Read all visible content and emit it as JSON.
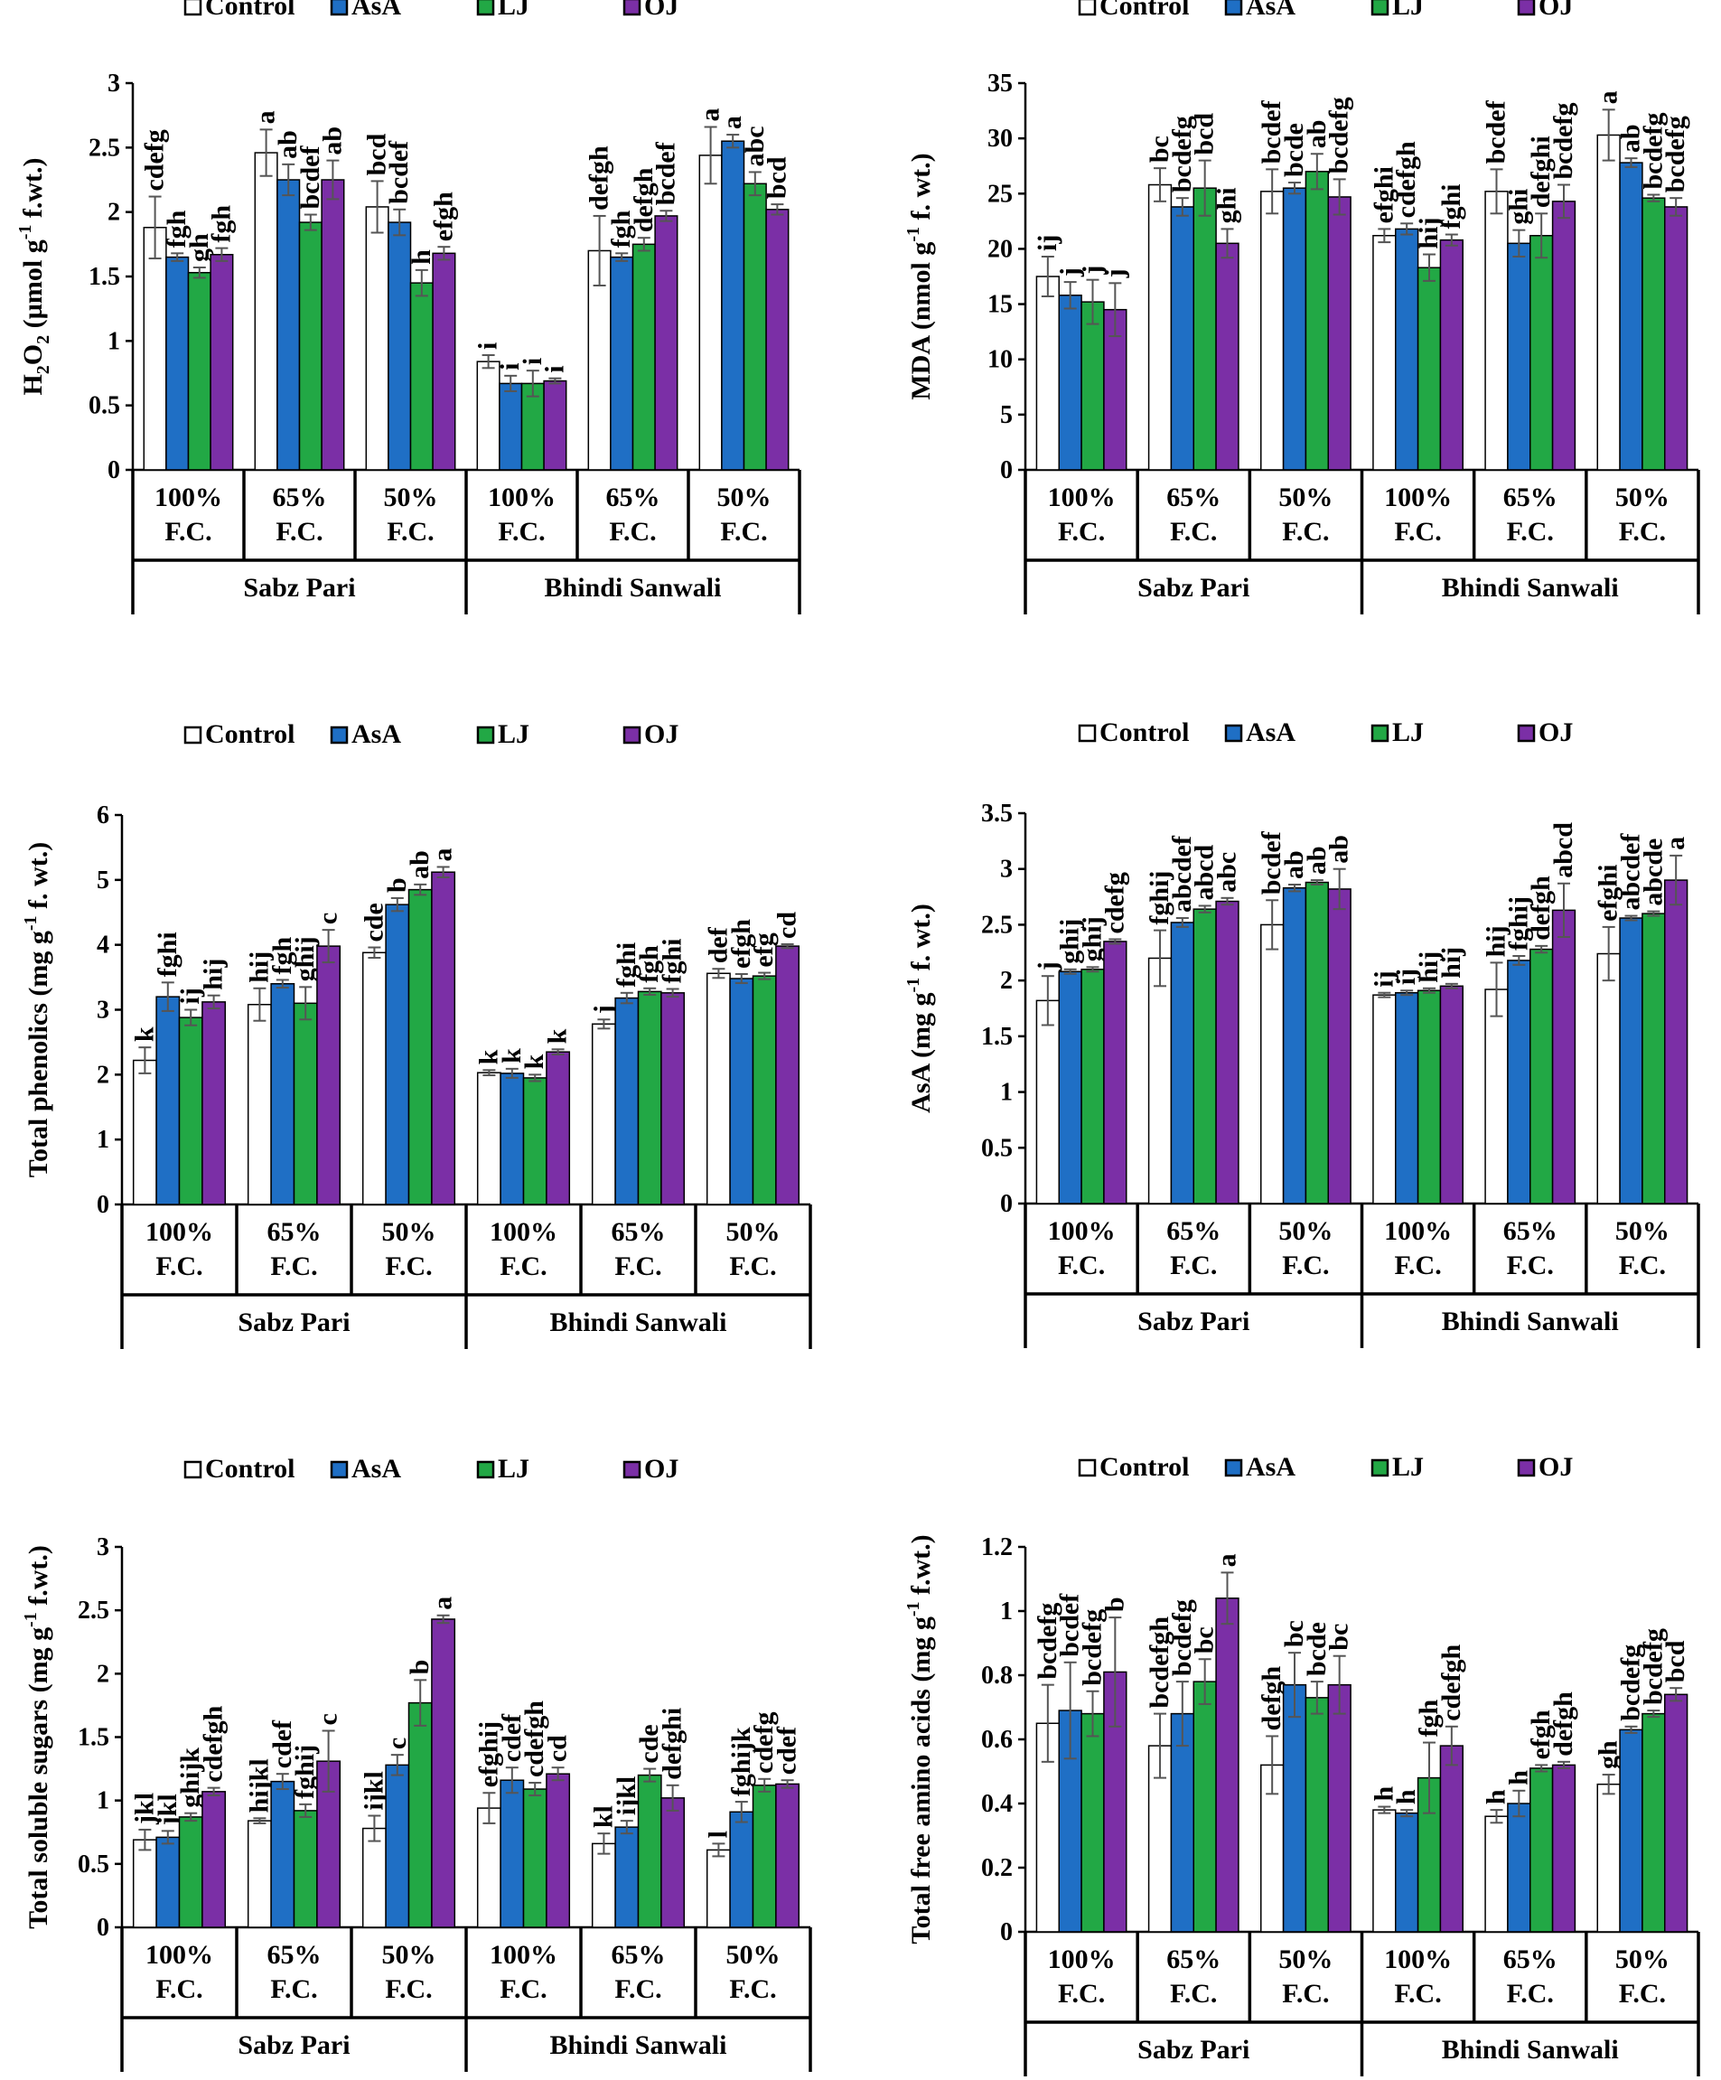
{
  "colors": {
    "Control": "#ffffff",
    "AsA": "#1f6fc5",
    "LJ": "#22a845",
    "OJ": "#7b2fa6",
    "axis": "#000000"
  },
  "chart_data": [
    {
      "type": "bar",
      "id": "h2o2",
      "ylabel_main": "H",
      "ylabel_sub": "2",
      "ylabel_main2": "O",
      "ylabel_sub2": "2",
      "ylabel_rest": " (µmol g",
      "ylabel_sup": "-1",
      "ylabel_end": " f.wt.)",
      "ylim": [
        0,
        3
      ],
      "yticks": [
        "0",
        "0.5",
        "1",
        "1.5",
        "2",
        "2.5",
        "3"
      ],
      "legend": [
        "Control",
        "AsA",
        "LJ",
        "OJ"
      ],
      "groups": [
        "Sabz Pari",
        "Bhindi Sanwali"
      ],
      "categories": [
        {
          "line1": "100%",
          "line2": "F.C."
        },
        {
          "line1": "65%",
          "line2": "F.C."
        },
        {
          "line1": "50%",
          "line2": "F.C."
        },
        {
          "line1": "100%",
          "line2": "F.C."
        },
        {
          "line1": "65%",
          "line2": "F.C."
        },
        {
          "line1": "50%",
          "line2": "F.C."
        }
      ],
      "series": [
        {
          "name": "Control",
          "values": [
            1.88,
            2.46,
            2.04,
            0.84,
            1.7,
            2.44
          ],
          "errors": [
            0.24,
            0.18,
            0.2,
            0.05,
            0.27,
            0.22
          ],
          "letters": [
            "cdefg",
            "a",
            "bcd",
            "i",
            "defgh",
            "a"
          ]
        },
        {
          "name": "AsA",
          "values": [
            1.65,
            2.25,
            1.92,
            0.67,
            1.65,
            2.55
          ],
          "errors": [
            0.03,
            0.12,
            0.1,
            0.06,
            0.03,
            0.05
          ],
          "letters": [
            "fgh",
            "ab",
            "bcdef",
            "i",
            "fgh",
            "a"
          ]
        },
        {
          "name": "LJ",
          "values": [
            1.53,
            1.92,
            1.45,
            0.67,
            1.75,
            2.22
          ],
          "errors": [
            0.04,
            0.06,
            0.1,
            0.1,
            0.05,
            0.09
          ],
          "letters": [
            "gh",
            "bcdef",
            "h",
            "i",
            "defgh",
            "abc"
          ]
        },
        {
          "name": "OJ",
          "values": [
            1.67,
            2.25,
            1.68,
            0.69,
            1.97,
            2.02
          ],
          "errors": [
            0.05,
            0.15,
            0.05,
            0.02,
            0.04,
            0.04
          ],
          "letters": [
            "fgh",
            "ab",
            "efgh",
            "i",
            "bcdef",
            "bcd"
          ]
        }
      ]
    },
    {
      "type": "bar",
      "id": "mda",
      "ylabel_main": "MDA (nmol g",
      "ylabel_sup": "-1",
      "ylabel_end": " f. wt.)",
      "ylim": [
        0,
        35
      ],
      "yticks": [
        "0",
        "5",
        "10",
        "15",
        "20",
        "25",
        "30",
        "35"
      ],
      "legend": [
        "Control",
        "AsA",
        "LJ",
        "OJ"
      ],
      "groups": [
        "Sabz Pari",
        "Bhindi Sanwali"
      ],
      "categories": [
        {
          "line1": "100%",
          "line2": "F.C."
        },
        {
          "line1": "65%",
          "line2": "F.C."
        },
        {
          "line1": "50%",
          "line2": "F.C."
        },
        {
          "line1": "100%",
          "line2": "F.C."
        },
        {
          "line1": "65%",
          "line2": "F.C."
        },
        {
          "line1": "50%",
          "line2": "F.C."
        }
      ],
      "series": [
        {
          "name": "Control",
          "values": [
            17.5,
            25.8,
            25.2,
            21.2,
            25.2,
            30.3
          ],
          "errors": [
            1.8,
            1.5,
            2.0,
            0.6,
            2.0,
            2.3
          ],
          "letters": [
            "ij",
            "bc",
            "bcdef",
            "efghi",
            "bcdef",
            "a"
          ]
        },
        {
          "name": "AsA",
          "values": [
            15.8,
            23.8,
            25.5,
            21.8,
            20.5,
            27.8
          ],
          "errors": [
            1.2,
            0.8,
            0.5,
            0.5,
            1.2,
            0.4
          ],
          "letters": [
            "j",
            "bcdefg",
            "bcde",
            "cdefgh",
            "ghi",
            "ab"
          ]
        },
        {
          "name": "LJ",
          "values": [
            15.2,
            25.5,
            27.0,
            18.3,
            21.2,
            24.6
          ],
          "errors": [
            2.0,
            2.5,
            1.6,
            1.2,
            2.0,
            0.3
          ],
          "letters": [
            "j",
            "bcd",
            "ab",
            "hij",
            "defghi",
            "bcdefg"
          ]
        },
        {
          "name": "OJ",
          "values": [
            14.5,
            20.5,
            24.7,
            20.8,
            24.3,
            23.8
          ],
          "errors": [
            2.4,
            1.3,
            1.6,
            0.5,
            1.5,
            0.8
          ],
          "letters": [
            "j",
            "ghi",
            "bcdefg",
            "fghi",
            "bcdefg",
            "bcdefg"
          ]
        }
      ]
    },
    {
      "type": "bar",
      "id": "phenolics",
      "ylabel_main": "Total phenolics (mg g",
      "ylabel_sup": "-1",
      "ylabel_end": " f. wt.)",
      "ylim": [
        0,
        6
      ],
      "yticks": [
        "0",
        "1",
        "2",
        "3",
        "4",
        "5",
        "6"
      ],
      "legend": [
        "Control",
        "AsA",
        "LJ",
        "OJ"
      ],
      "groups": [
        "Sabz Pari",
        "Bhindi Sanwali"
      ],
      "categories": [
        {
          "line1": "100%",
          "line2": "F.C."
        },
        {
          "line1": "65%",
          "line2": "F.C."
        },
        {
          "line1": "50%",
          "line2": "F.C."
        },
        {
          "line1": "100%",
          "line2": "F.C."
        },
        {
          "line1": "65%",
          "line2": "F.C."
        },
        {
          "line1": "50%",
          "line2": "F.C."
        }
      ],
      "series": [
        {
          "name": "Control",
          "values": [
            2.22,
            3.08,
            3.88,
            2.03,
            2.78,
            3.56
          ],
          "errors": [
            0.2,
            0.25,
            0.08,
            0.04,
            0.07,
            0.07
          ],
          "letters": [
            "k",
            "hij",
            "cde",
            "k",
            "j",
            "def"
          ]
        },
        {
          "name": "AsA",
          "values": [
            3.2,
            3.4,
            4.62,
            2.02,
            3.18,
            3.48
          ],
          "errors": [
            0.22,
            0.06,
            0.1,
            0.07,
            0.08,
            0.07
          ],
          "letters": [
            "fghi",
            "fgh",
            "b",
            "k",
            "fghi",
            "efgh"
          ]
        },
        {
          "name": "LJ",
          "values": [
            2.88,
            3.1,
            4.85,
            1.95,
            3.28,
            3.52
          ],
          "errors": [
            0.12,
            0.25,
            0.08,
            0.05,
            0.05,
            0.05
          ],
          "letters": [
            "ij",
            "ghij",
            "ab",
            "k",
            "fgh",
            "efg"
          ]
        },
        {
          "name": "OJ",
          "values": [
            3.12,
            3.98,
            5.12,
            2.35,
            3.26,
            3.98
          ],
          "errors": [
            0.1,
            0.25,
            0.08,
            0.04,
            0.06,
            0.03
          ],
          "letters": [
            "hij",
            "c",
            "a",
            "k",
            "fghi",
            "cd"
          ]
        }
      ]
    },
    {
      "type": "bar",
      "id": "asa",
      "ylabel_main": "AsA (mg g",
      "ylabel_sup": "-1",
      "ylabel_end": " f. wt.)",
      "ylim": [
        0,
        3.5
      ],
      "yticks": [
        "0",
        "0.5",
        "1",
        "1.5",
        "2",
        "2.5",
        "3",
        "3.5"
      ],
      "legend": [
        "Control",
        "AsA",
        "LJ",
        "OJ"
      ],
      "groups": [
        "Sabz Pari",
        "Bhindi Sanwali"
      ],
      "categories": [
        {
          "line1": "100%",
          "line2": "F.C."
        },
        {
          "line1": "65%",
          "line2": "F.C."
        },
        {
          "line1": "50%",
          "line2": "F.C."
        },
        {
          "line1": "100%",
          "line2": "F.C."
        },
        {
          "line1": "65%",
          "line2": "F.C."
        },
        {
          "line1": "50%",
          "line2": "F.C."
        }
      ],
      "series": [
        {
          "name": "Control",
          "values": [
            1.82,
            2.2,
            2.5,
            1.87,
            1.92,
            2.24
          ],
          "errors": [
            0.22,
            0.25,
            0.22,
            0.02,
            0.24,
            0.24
          ],
          "letters": [
            "j",
            "fghij",
            "bcdef",
            "ij",
            "hij",
            "efghi"
          ]
        },
        {
          "name": "AsA",
          "values": [
            2.08,
            2.52,
            2.83,
            1.89,
            2.18,
            2.56
          ],
          "errors": [
            0.02,
            0.04,
            0.03,
            0.02,
            0.04,
            0.02
          ],
          "letters": [
            "ghij",
            "abcdef",
            "ab",
            "ij",
            "fghij",
            "abcdef"
          ]
        },
        {
          "name": "LJ",
          "values": [
            2.1,
            2.64,
            2.88,
            1.91,
            2.28,
            2.6
          ],
          "errors": [
            0.02,
            0.03,
            0.02,
            0.02,
            0.03,
            0.02
          ],
          "letters": [
            "ghij",
            "abcd",
            "ab",
            "hij",
            "defgh",
            "abcde"
          ]
        },
        {
          "name": "OJ",
          "values": [
            2.35,
            2.71,
            2.82,
            1.95,
            2.63,
            2.9
          ],
          "errors": [
            0.02,
            0.03,
            0.18,
            0.02,
            0.24,
            0.22
          ],
          "letters": [
            "cdefg",
            "abc",
            "ab",
            "hij",
            "abcd",
            "a"
          ]
        }
      ]
    },
    {
      "type": "bar",
      "id": "sugars",
      "ylabel_main": "Total soluble sugars (mg g",
      "ylabel_sup": "-1",
      "ylabel_end": " f.wt.)",
      "ylim": [
        0,
        3
      ],
      "yticks": [
        "0",
        "0.5",
        "1",
        "1.5",
        "2",
        "2.5",
        "3"
      ],
      "legend": [
        "Control",
        "AsA",
        "LJ",
        "OJ"
      ],
      "groups": [
        "Sabz Pari",
        "Bhindi Sanwali"
      ],
      "categories": [
        {
          "line1": "100%",
          "line2": "F.C."
        },
        {
          "line1": "65%",
          "line2": "F.C."
        },
        {
          "line1": "50%",
          "line2": "F.C."
        },
        {
          "line1": "100%",
          "line2": "F.C."
        },
        {
          "line1": "65%",
          "line2": "F.C."
        },
        {
          "line1": "50%",
          "line2": "F.C."
        }
      ],
      "series": [
        {
          "name": "Control",
          "values": [
            0.69,
            0.84,
            0.78,
            0.94,
            0.66,
            0.61
          ],
          "errors": [
            0.08,
            0.02,
            0.1,
            0.12,
            0.08,
            0.05
          ],
          "letters": [
            "jkl",
            "hijkl",
            "ijkl",
            "efghij",
            "kl",
            "l"
          ]
        },
        {
          "name": "AsA",
          "values": [
            0.71,
            1.15,
            1.28,
            1.16,
            0.79,
            0.91
          ],
          "errors": [
            0.05,
            0.06,
            0.08,
            0.1,
            0.05,
            0.08
          ],
          "letters": [
            "jkl",
            "cdef",
            "c",
            "cdef",
            "ijkl",
            "fghijk"
          ]
        },
        {
          "name": "LJ",
          "values": [
            0.87,
            0.92,
            1.77,
            1.09,
            1.2,
            1.12
          ],
          "errors": [
            0.03,
            0.05,
            0.18,
            0.05,
            0.05,
            0.05
          ],
          "letters": [
            "ghijk",
            "fghij",
            "b",
            "cdefgh",
            "cde",
            "cdefg"
          ]
        },
        {
          "name": "OJ",
          "values": [
            1.07,
            1.31,
            2.43,
            1.21,
            1.02,
            1.13
          ],
          "errors": [
            0.03,
            0.24,
            0.03,
            0.05,
            0.1,
            0.03
          ],
          "letters": [
            "cdefgh",
            "c",
            "a",
            "cd",
            "defghi",
            "cdef"
          ]
        }
      ]
    },
    {
      "type": "bar",
      "id": "aminoacids",
      "ylabel_main": "Total free amino acids (mg g",
      "ylabel_sup": "-1",
      "ylabel_end": " f.wt.)",
      "ylim": [
        0,
        1.2
      ],
      "yticks": [
        "0",
        "0.2",
        "0.4",
        "0.6",
        "0.8",
        "1",
        "1.2"
      ],
      "legend": [
        "Control",
        "AsA",
        "LJ",
        "OJ"
      ],
      "groups": [
        "Sabz Pari",
        "Bhindi Sanwali"
      ],
      "categories": [
        {
          "line1": "100%",
          "line2": "F.C."
        },
        {
          "line1": "65%",
          "line2": "F.C."
        },
        {
          "line1": "50%",
          "line2": "F.C."
        },
        {
          "line1": "100%",
          "line2": "F.C."
        },
        {
          "line1": "65%",
          "line2": "F.C."
        },
        {
          "line1": "50%",
          "line2": "F.C."
        }
      ],
      "series": [
        {
          "name": "Control",
          "values": [
            0.65,
            0.58,
            0.52,
            0.38,
            0.36,
            0.46
          ],
          "errors": [
            0.12,
            0.1,
            0.09,
            0.01,
            0.02,
            0.03
          ],
          "letters": [
            "bcdefg",
            "bcdefgh",
            "defgh",
            "h",
            "h",
            "gh"
          ]
        },
        {
          "name": "AsA",
          "values": [
            0.69,
            0.68,
            0.77,
            0.37,
            0.4,
            0.63
          ],
          "errors": [
            0.15,
            0.1,
            0.1,
            0.01,
            0.04,
            0.01
          ],
          "letters": [
            "bcdef",
            "bcdefg",
            "bc",
            "h",
            "h",
            "bcdefg"
          ]
        },
        {
          "name": "LJ",
          "values": [
            0.68,
            0.78,
            0.73,
            0.48,
            0.51,
            0.68
          ],
          "errors": [
            0.07,
            0.07,
            0.05,
            0.11,
            0.01,
            0.01
          ],
          "letters": [
            "bcdefg",
            "bc",
            "bcde",
            "fgh",
            "efgh",
            "bcdefg"
          ]
        },
        {
          "name": "OJ",
          "values": [
            0.81,
            1.04,
            0.77,
            0.58,
            0.52,
            0.74
          ],
          "errors": [
            0.17,
            0.08,
            0.09,
            0.06,
            0.01,
            0.02
          ],
          "letters": [
            "b",
            "a",
            "bc",
            "cdefgh",
            "defgh",
            "bcd"
          ]
        }
      ]
    }
  ]
}
